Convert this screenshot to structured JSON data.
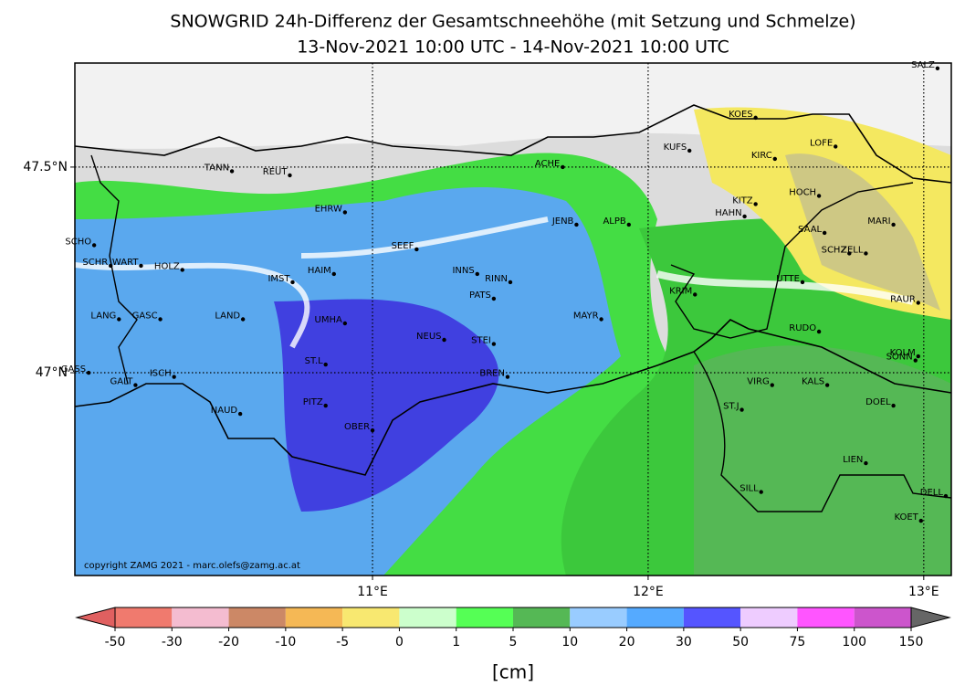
{
  "title": [
    "SNOWGRID 24h-Differenz der Gesamtschneehöhe (mit Setzung und Schmelze)",
    "13-Nov-2021 10:00 UTC - 14-Nov-2021 10:00 UTC"
  ],
  "copyright": "copyright ZAMG 2021 - marc.olefs@zamg.ac.at",
  "map": {
    "xlim": [
      9.92,
      13.1
    ],
    "ylim": [
      46.507,
      47.753
    ],
    "xticks": [
      {
        "value": 11,
        "label": "11°E"
      },
      {
        "value": 12,
        "label": "12°E"
      },
      {
        "value": 13,
        "label": "13°E"
      }
    ],
    "yticks": [
      {
        "value": 47.5,
        "label": "47.5°N"
      },
      {
        "value": 47,
        "label": "47°N"
      }
    ],
    "stations": [
      {
        "name": "SALZ",
        "lon": 13.05,
        "lat": 47.74
      },
      {
        "name": "KOES",
        "lon": 12.39,
        "lat": 47.62
      },
      {
        "name": "KUFS",
        "lon": 12.15,
        "lat": 47.54
      },
      {
        "name": "LOFE",
        "lon": 12.68,
        "lat": 47.55
      },
      {
        "name": "KIRC",
        "lon": 12.46,
        "lat": 47.52
      },
      {
        "name": "ACHE",
        "lon": 11.69,
        "lat": 47.5
      },
      {
        "name": "TANN",
        "lon": 10.49,
        "lat": 47.49
      },
      {
        "name": "REUT",
        "lon": 10.7,
        "lat": 47.48
      },
      {
        "name": "HOCH",
        "lon": 12.62,
        "lat": 47.43
      },
      {
        "name": "KITZ",
        "lon": 12.39,
        "lat": 47.41
      },
      {
        "name": "HAHN",
        "lon": 12.35,
        "lat": 47.38
      },
      {
        "name": "EHRW",
        "lon": 10.9,
        "lat": 47.39
      },
      {
        "name": "JENB",
        "lon": 11.74,
        "lat": 47.36
      },
      {
        "name": "ALPB",
        "lon": 11.93,
        "lat": 47.36
      },
      {
        "name": "MARI",
        "lon": 12.89,
        "lat": 47.36
      },
      {
        "name": "SAAL",
        "lon": 12.64,
        "lat": 47.34
      },
      {
        "name": "SCHO",
        "lon": 9.99,
        "lat": 47.31
      },
      {
        "name": "SEEF",
        "lon": 11.16,
        "lat": 47.3
      },
      {
        "name": "SCHZ",
        "lon": 12.73,
        "lat": 47.29
      },
      {
        "name": "ZELL",
        "lon": 12.79,
        "lat": 47.29
      },
      {
        "name": "SCHR",
        "lon": 10.05,
        "lat": 47.26
      },
      {
        "name": "WART",
        "lon": 10.16,
        "lat": 47.26
      },
      {
        "name": "HOLZ",
        "lon": 10.31,
        "lat": 47.25
      },
      {
        "name": "HAIM",
        "lon": 10.86,
        "lat": 47.24
      },
      {
        "name": "INNS",
        "lon": 11.38,
        "lat": 47.24
      },
      {
        "name": "RINN",
        "lon": 11.5,
        "lat": 47.22
      },
      {
        "name": "IMST",
        "lon": 10.71,
        "lat": 47.22
      },
      {
        "name": "UTTE",
        "lon": 12.56,
        "lat": 47.22
      },
      {
        "name": "KRIM",
        "lon": 12.17,
        "lat": 47.19
      },
      {
        "name": "PATS",
        "lon": 11.44,
        "lat": 47.18
      },
      {
        "name": "RAUR",
        "lon": 12.98,
        "lat": 47.17
      },
      {
        "name": "LANG",
        "lon": 10.08,
        "lat": 47.13
      },
      {
        "name": "GASC",
        "lon": 10.23,
        "lat": 47.13
      },
      {
        "name": "LAND",
        "lon": 10.53,
        "lat": 47.13
      },
      {
        "name": "UMHA",
        "lon": 10.9,
        "lat": 47.12
      },
      {
        "name": "MAYR",
        "lon": 11.83,
        "lat": 47.13
      },
      {
        "name": "RUDO",
        "lon": 12.62,
        "lat": 47.1
      },
      {
        "name": "NEUS",
        "lon": 11.26,
        "lat": 47.08
      },
      {
        "name": "STEI",
        "lon": 11.44,
        "lat": 47.07
      },
      {
        "name": "KOLM",
        "lon": 12.98,
        "lat": 47.04
      },
      {
        "name": "SONN",
        "lon": 12.97,
        "lat": 47.03
      },
      {
        "name": "ST.L",
        "lon": 10.83,
        "lat": 47.02
      },
      {
        "name": "GASS",
        "lon": 9.97,
        "lat": 47.0
      },
      {
        "name": "GALT",
        "lon": 10.14,
        "lat": 46.97
      },
      {
        "name": "ISCH",
        "lon": 10.28,
        "lat": 46.99
      },
      {
        "name": "BREN",
        "lon": 11.49,
        "lat": 46.99
      },
      {
        "name": "VIRG",
        "lon": 12.45,
        "lat": 46.97
      },
      {
        "name": "KALS",
        "lon": 12.65,
        "lat": 46.97
      },
      {
        "name": "PITZ",
        "lon": 10.83,
        "lat": 46.92
      },
      {
        "name": "DOEL",
        "lon": 12.89,
        "lat": 46.92
      },
      {
        "name": "NAUD",
        "lon": 10.52,
        "lat": 46.9
      },
      {
        "name": "ST.J",
        "lon": 12.34,
        "lat": 46.91
      },
      {
        "name": "OBER",
        "lon": 11.0,
        "lat": 46.86
      },
      {
        "name": "LIEN",
        "lon": 12.79,
        "lat": 46.78
      },
      {
        "name": "SILL",
        "lon": 12.41,
        "lat": 46.71
      },
      {
        "name": "DELL",
        "lon": 13.08,
        "lat": 46.7
      },
      {
        "name": "KOET",
        "lon": 12.99,
        "lat": 46.64
      }
    ]
  },
  "colorbar": {
    "label": "[cm]",
    "ticks": [
      -50,
      -30,
      -20,
      -10,
      -5,
      0,
      1,
      5,
      10,
      20,
      30,
      50,
      75,
      100,
      150
    ],
    "colors": [
      "#e06060",
      "#f07a6e",
      "#f4bcd0",
      "#cc8866",
      "#f5b855",
      "#f8e870",
      "#ccffcc",
      "#55ff55",
      "#55b855",
      "#99ccff",
      "#55aaff",
      "#5555ff",
      "#eeccff",
      "#ff55ff",
      "#cc55cc",
      "#666666"
    ]
  }
}
